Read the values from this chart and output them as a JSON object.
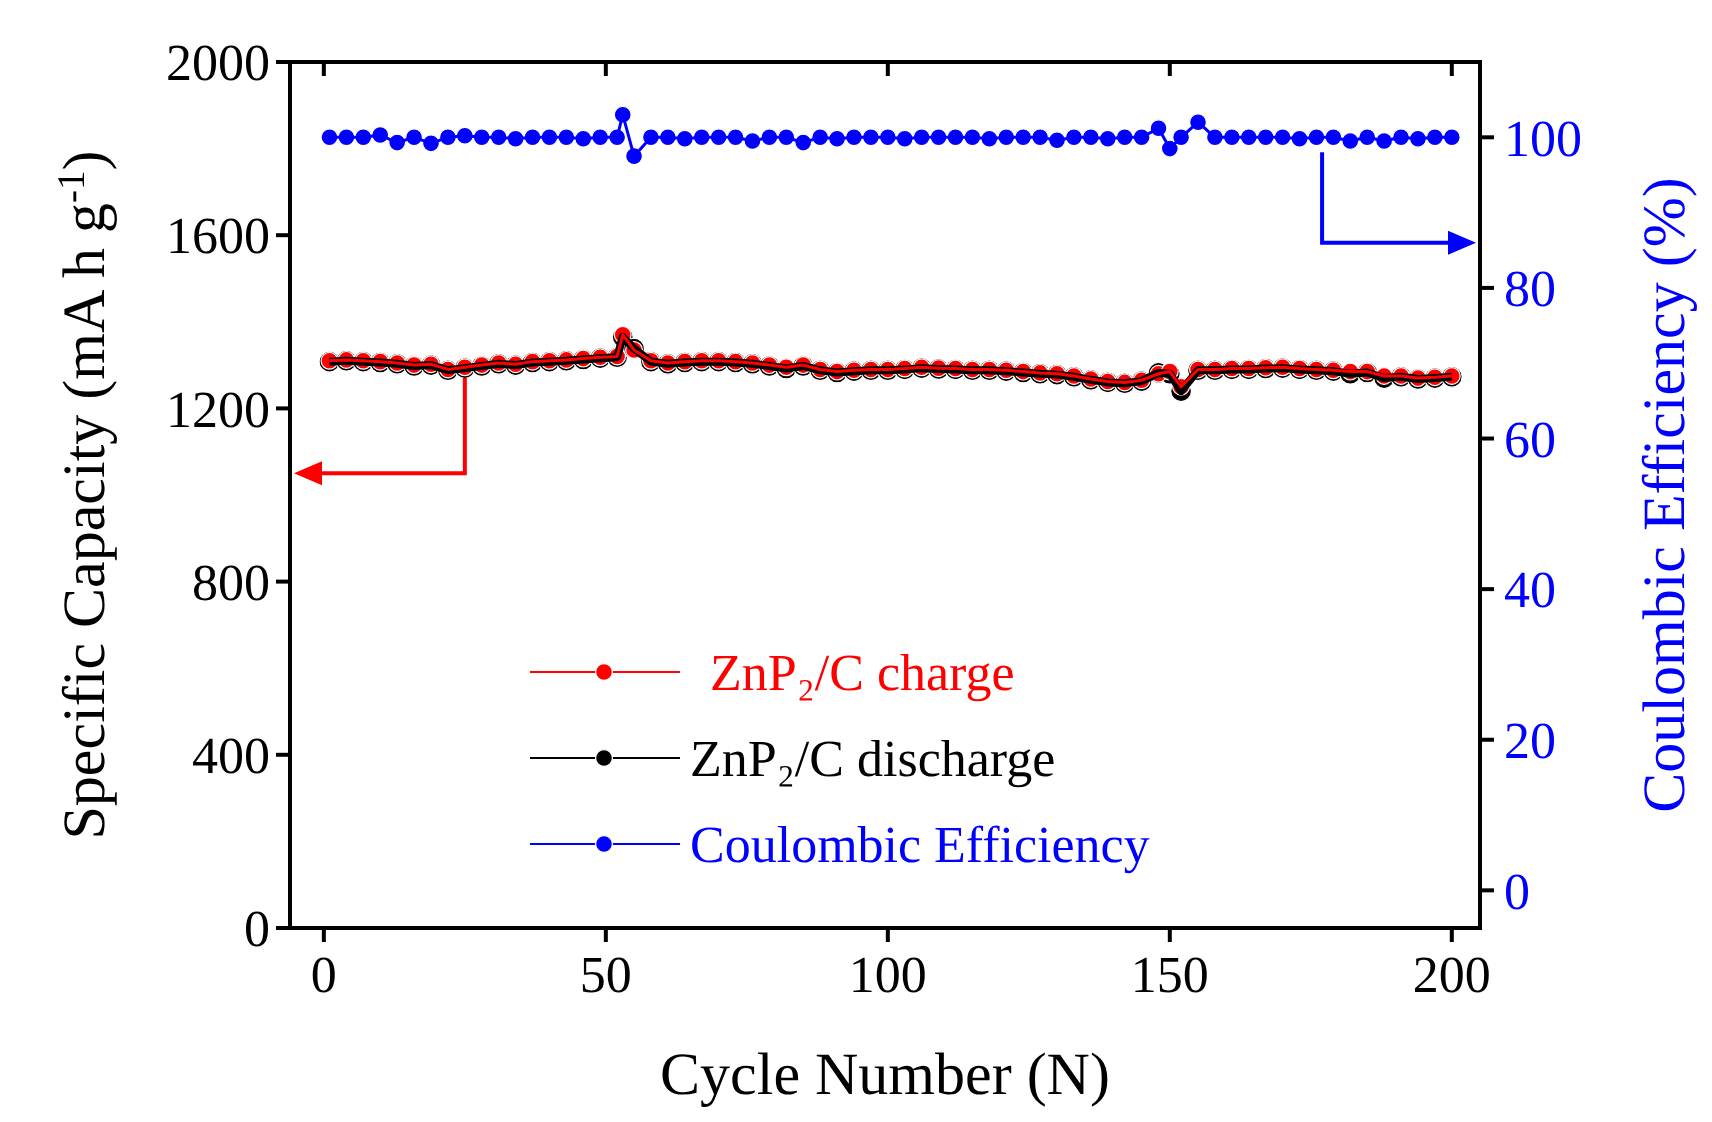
{
  "chart_data": {
    "type": "line",
    "xlabel": "Cycle Number (N)",
    "ylabel": "Specific Capacity (mA h g$^{-1}$)",
    "y2label": "Coulombic Efficiency (%)",
    "x": [
      1,
      4,
      7,
      10,
      13,
      16,
      19,
      22,
      25,
      28,
      31,
      34,
      37,
      40,
      43,
      46,
      49,
      52,
      53,
      55,
      58,
      61,
      64,
      67,
      70,
      73,
      76,
      79,
      82,
      85,
      88,
      91,
      94,
      97,
      100,
      103,
      106,
      109,
      112,
      115,
      118,
      121,
      124,
      127,
      130,
      133,
      136,
      139,
      142,
      145,
      148,
      150,
      152,
      155,
      158,
      161,
      164,
      167,
      170,
      173,
      176,
      179,
      182,
      185,
      188,
      191,
      194,
      197,
      200
    ],
    "series": [
      {
        "name": "ZnP₂/C discharge",
        "color": "#000000",
        "values": [
          1308,
          1310,
          1308,
          1306,
          1303,
          1298,
          1300,
          1288,
          1293,
          1298,
          1303,
          1300,
          1306,
          1308,
          1310,
          1313,
          1316,
          1318,
          1365,
          1338,
          1308,
          1303,
          1306,
          1308,
          1308,
          1306,
          1303,
          1298,
          1292,
          1298,
          1288,
          1283,
          1286,
          1288,
          1288,
          1290,
          1293,
          1291,
          1290,
          1288,
          1288,
          1286,
          1283,
          1280,
          1278,
          1273,
          1266,
          1260,
          1258,
          1263,
          1282,
          1280,
          1240,
          1288,
          1288,
          1290,
          1290,
          1292,
          1293,
          1290,
          1288,
          1286,
          1280,
          1283,
          1270,
          1273,
          1268,
          1270,
          1273
        ]
      },
      {
        "name": "ZnP₂/C charge",
        "color": "#ff0000",
        "values": [
          1310,
          1312,
          1310,
          1308,
          1305,
          1300,
          1302,
          1290,
          1295,
          1300,
          1305,
          1302,
          1308,
          1310,
          1312,
          1315,
          1318,
          1320,
          1370,
          1335,
          1310,
          1305,
          1308,
          1310,
          1310,
          1308,
          1305,
          1300,
          1295,
          1300,
          1290,
          1285,
          1288,
          1290,
          1290,
          1292,
          1295,
          1293,
          1292,
          1290,
          1290,
          1288,
          1285,
          1282,
          1280,
          1275,
          1268,
          1262,
          1260,
          1265,
          1280,
          1285,
          1250,
          1290,
          1290,
          1292,
          1292,
          1294,
          1295,
          1292,
          1290,
          1288,
          1285,
          1285,
          1275,
          1275,
          1270,
          1272,
          1275
        ]
      },
      {
        "name": "Coulombic Efficiency",
        "color": "#0000ff",
        "axis": "y2",
        "values": [
          100,
          100,
          100,
          100.3,
          99.3,
          100,
          99.2,
          100,
          100.2,
          100,
          100,
          99.8,
          100,
          100,
          100,
          99.8,
          100,
          100,
          103,
          97.5,
          100,
          100,
          99.8,
          100,
          100,
          100,
          99.5,
          100,
          100,
          99.3,
          100,
          99.8,
          100,
          100,
          100,
          99.8,
          100,
          100,
          100,
          100,
          99.8,
          100,
          100,
          100,
          99.6,
          100,
          100,
          99.8,
          100,
          100,
          101.2,
          98.5,
          100,
          102,
          100,
          100,
          100,
          100,
          100,
          99.8,
          100,
          100,
          99.5,
          100,
          99.5,
          100,
          99.8,
          100,
          100
        ]
      }
    ],
    "xlim": [
      -6,
      205
    ],
    "xticks": [
      0,
      50,
      100,
      150,
      200
    ],
    "ylim": [
      0,
      2000
    ],
    "yticks": [
      0,
      400,
      800,
      1200,
      1600,
      2000
    ],
    "y2lim": [
      -5,
      110
    ],
    "y2ticks": [
      0,
      20,
      40,
      60,
      80,
      100
    ],
    "marker": "circle",
    "line_style": "solid",
    "legend": "bottom left",
    "grid": false
  }
}
